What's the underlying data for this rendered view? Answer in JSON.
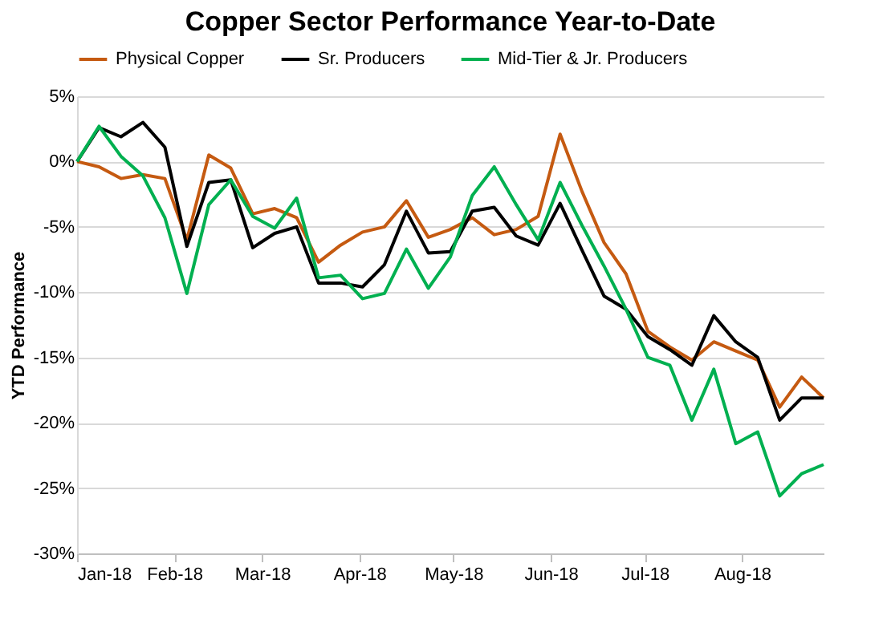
{
  "chart_data": {
    "type": "line",
    "title": "Copper Sector Performance Year-to-Date",
    "ylabel": "YTD Performance",
    "x": [
      "2018-01-01",
      "2018-01-08",
      "2018-01-15",
      "2018-01-22",
      "2018-01-29",
      "2018-02-05",
      "2018-02-12",
      "2018-02-19",
      "2018-02-26",
      "2018-03-05",
      "2018-03-12",
      "2018-03-19",
      "2018-03-26",
      "2018-04-02",
      "2018-04-09",
      "2018-04-16",
      "2018-04-23",
      "2018-04-30",
      "2018-05-07",
      "2018-05-14",
      "2018-05-21",
      "2018-05-28",
      "2018-06-04",
      "2018-06-11",
      "2018-06-18",
      "2018-06-25",
      "2018-07-02",
      "2018-07-09",
      "2018-07-16",
      "2018-07-23",
      "2018-07-30",
      "2018-08-06",
      "2018-08-13",
      "2018-08-20",
      "2018-08-27"
    ],
    "series": [
      {
        "name": "Physical Copper",
        "color": "#c55a11",
        "values": [
          0,
          -0.4,
          -1.3,
          -1.0,
          -1.3,
          -6.0,
          0.5,
          -0.5,
          -4.0,
          -3.6,
          -4.3,
          -7.7,
          -6.4,
          -5.4,
          -5.0,
          -3.0,
          -5.8,
          -5.2,
          -4.3,
          -5.6,
          -5.2,
          -4.2,
          2.1,
          -2.3,
          -6.2,
          -8.6,
          -13.0,
          -14.2,
          -15.2,
          -13.8,
          -14.5,
          -15.2,
          -18.8,
          -16.5,
          -18.1
        ]
      },
      {
        "name": "Sr. Producers",
        "color": "#000000",
        "values": [
          0,
          2.6,
          1.9,
          3.0,
          1.1,
          -6.5,
          -1.6,
          -1.4,
          -6.6,
          -5.5,
          -5.0,
          -9.3,
          -9.3,
          -9.6,
          -7.9,
          -3.8,
          -7.0,
          -6.9,
          -3.8,
          -3.5,
          -5.7,
          -6.4,
          -3.2,
          -6.8,
          -10.3,
          -11.3,
          -13.4,
          -14.4,
          -15.6,
          -11.8,
          -13.8,
          -15.0,
          -19.8,
          -18.1,
          -18.1
        ]
      },
      {
        "name": "Mid-Tier & Jr. Producers",
        "color": "#00b050",
        "values": [
          0,
          2.7,
          0.4,
          -1.1,
          -4.3,
          -10.1,
          -3.3,
          -1.4,
          -4.2,
          -5.1,
          -2.8,
          -8.9,
          -8.7,
          -10.5,
          -10.1,
          -6.7,
          -9.7,
          -7.3,
          -2.6,
          -0.4,
          -3.3,
          -6.0,
          -1.6,
          -4.9,
          -8.0,
          -11.3,
          -15.0,
          -15.6,
          -19.8,
          -15.9,
          -21.6,
          -20.7,
          -25.6,
          -23.9,
          -23.2
        ]
      }
    ],
    "xlim": [
      "2018-01-01",
      "2018-08-27"
    ],
    "xticks": [
      {
        "value": "2018-01-01",
        "label": "Jan-18"
      },
      {
        "value": "2018-02-01",
        "label": "Feb-18"
      },
      {
        "value": "2018-03-01",
        "label": "Mar-18"
      },
      {
        "value": "2018-04-01",
        "label": "Apr-18"
      },
      {
        "value": "2018-05-01",
        "label": "May-18"
      },
      {
        "value": "2018-06-01",
        "label": "Jun-18"
      },
      {
        "value": "2018-07-01",
        "label": "Jul-18"
      },
      {
        "value": "2018-08-01",
        "label": "Aug-18"
      }
    ],
    "ylim": [
      -30,
      5
    ],
    "yticks": [
      {
        "value": 5,
        "label": "5%"
      },
      {
        "value": 0,
        "label": "0%"
      },
      {
        "value": -5,
        "label": "-5%"
      },
      {
        "value": -10,
        "label": "-10%"
      },
      {
        "value": -15,
        "label": "-15%"
      },
      {
        "value": -20,
        "label": "-20%"
      },
      {
        "value": -25,
        "label": "-25%"
      },
      {
        "value": -30,
        "label": "-30%"
      }
    ],
    "grid": "y",
    "legend": "top",
    "marker": "none",
    "line_style": "solid"
  }
}
